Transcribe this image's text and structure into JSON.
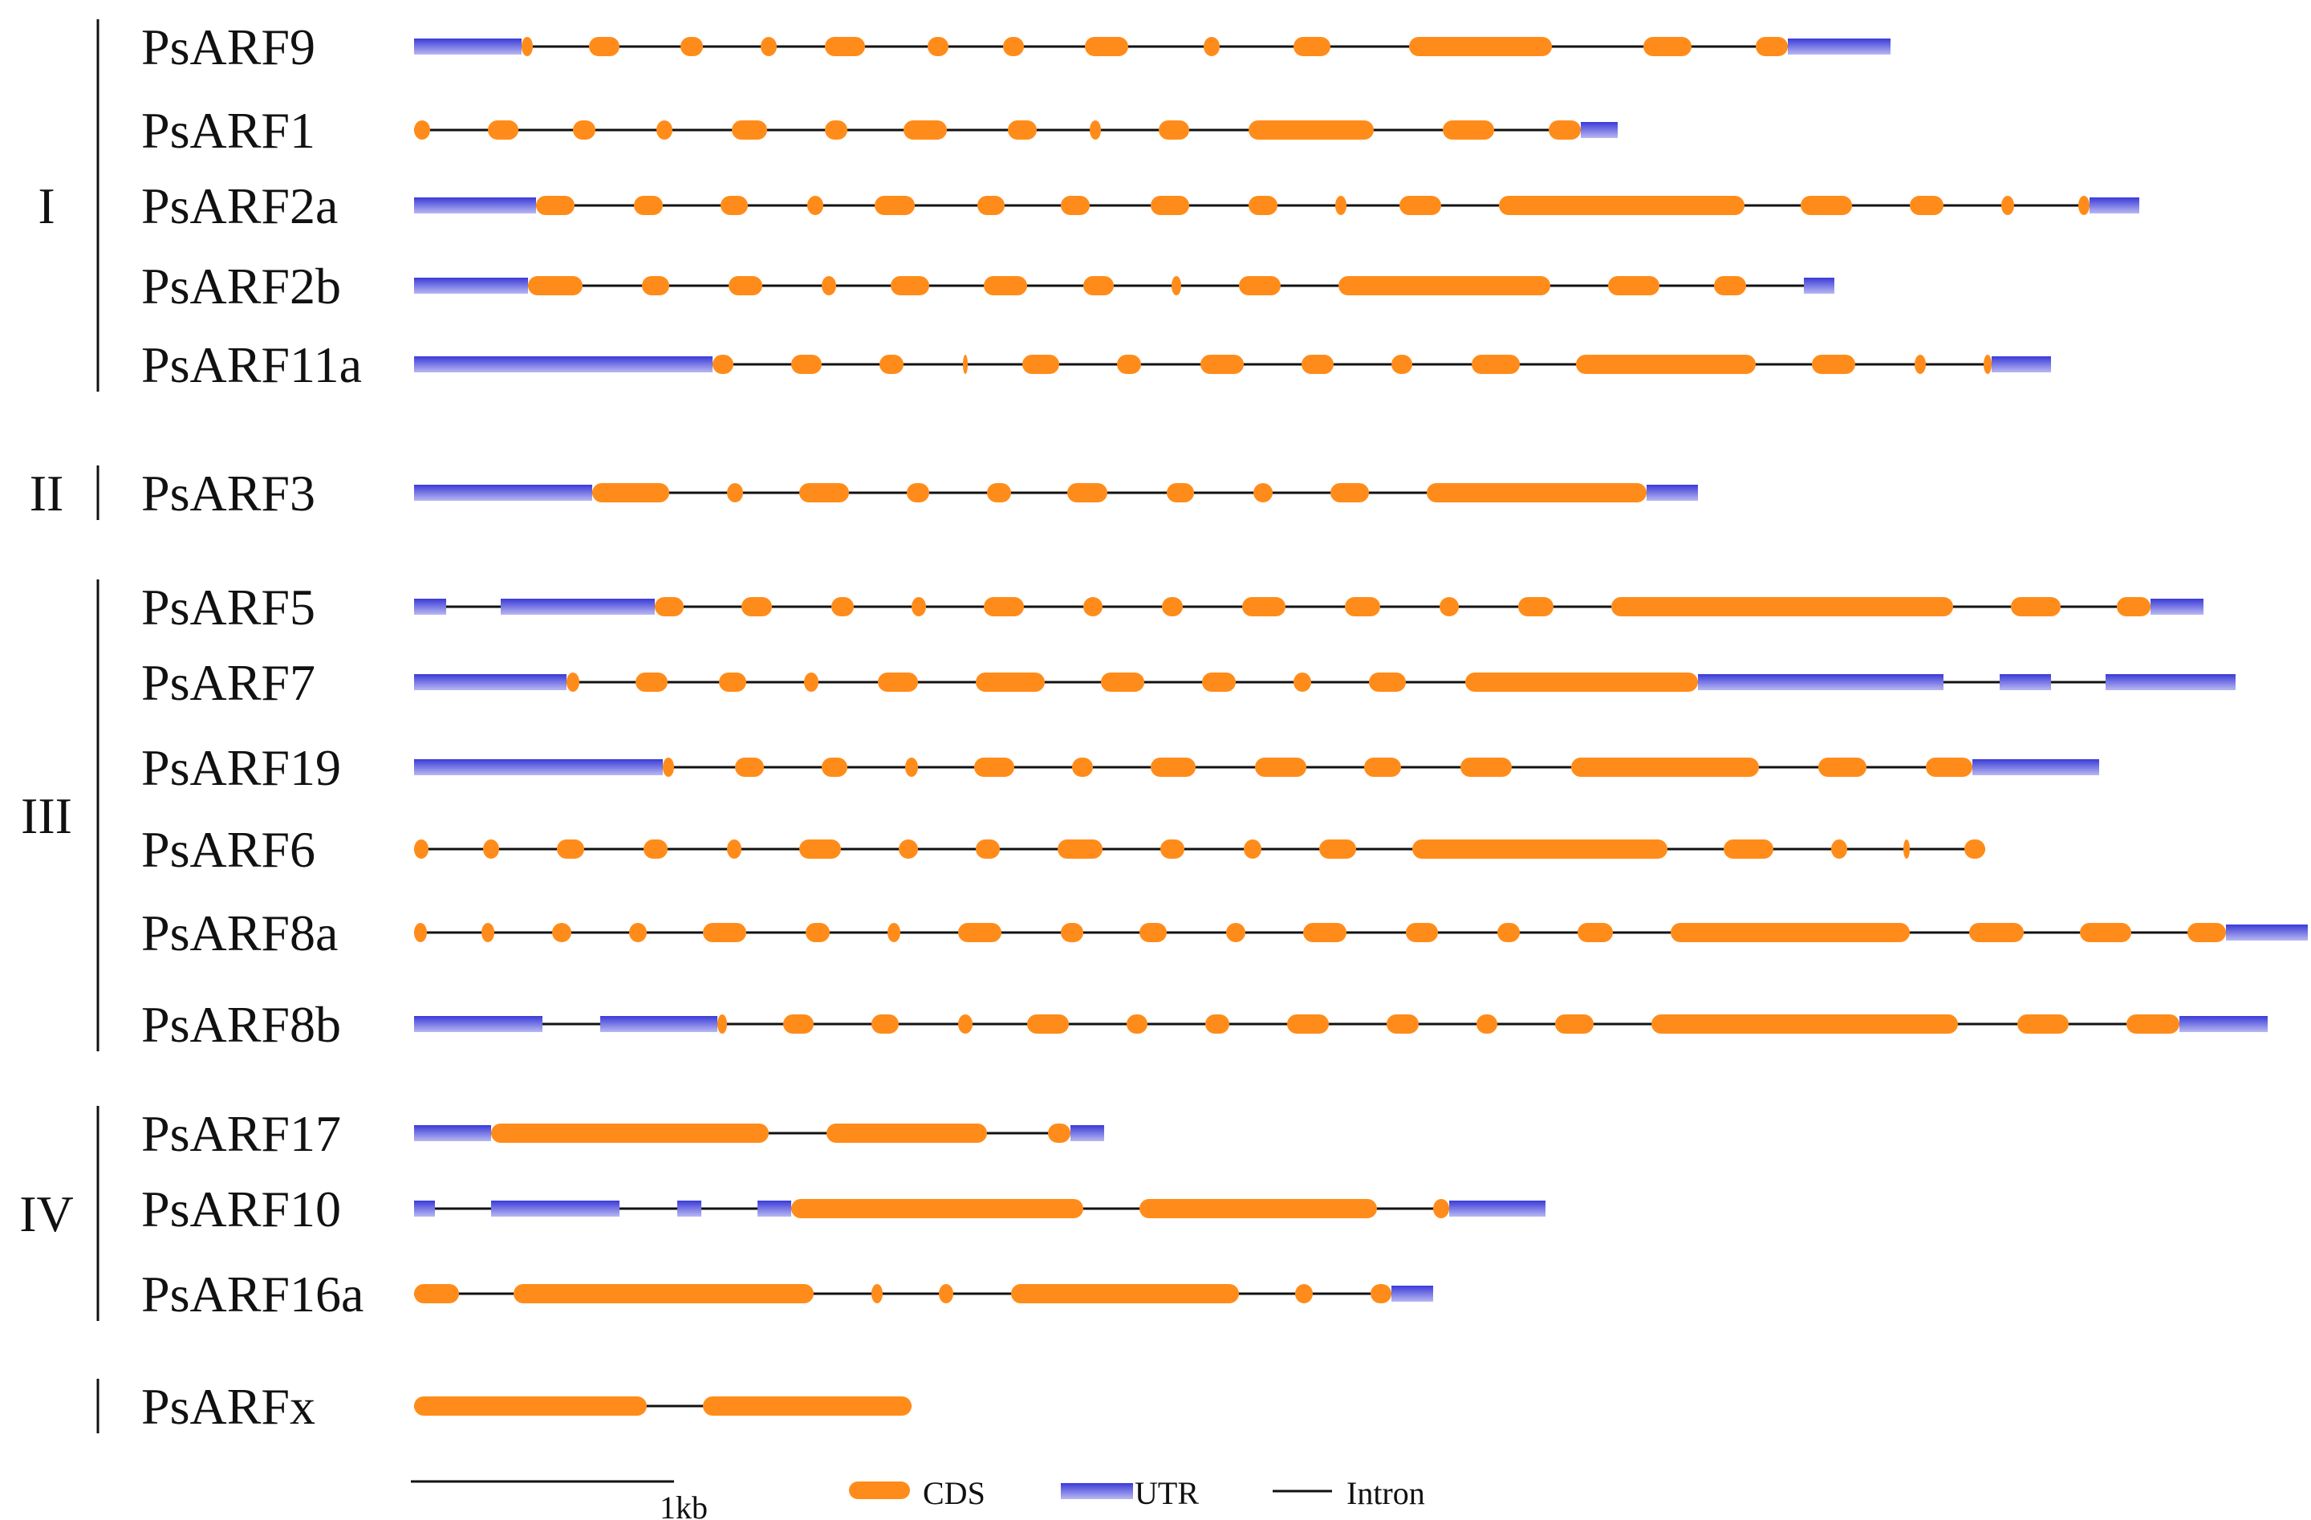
{
  "colors": {
    "cds": "#FF8C1A",
    "utr": "#3A3AD8",
    "utr_light": "#B8B8F2",
    "intron": "#111111"
  },
  "scale_label": "1kb",
  "legend": {
    "cds": "CDS",
    "utr": "UTR",
    "intron": "Intron"
  },
  "groups": [
    {
      "label": "I",
      "first": 0,
      "last": 4
    },
    {
      "label": "II",
      "first": 5,
      "last": 5
    },
    {
      "label": "III",
      "first": 6,
      "last": 11
    },
    {
      "label": "IV",
      "first": 12,
      "last": 14
    },
    {
      "label": "",
      "first": 15,
      "last": 15
    }
  ],
  "genes": [
    {
      "name": "PsARF9",
      "features": [
        [
          "U",
          0,
          134
        ],
        [
          "C",
          134,
          148
        ],
        [
          "C",
          218,
          256
        ],
        [
          "C",
          332,
          360
        ],
        [
          "C",
          432,
          452
        ],
        [
          "C",
          512,
          562
        ],
        [
          "C",
          640,
          666
        ],
        [
          "C",
          734,
          760
        ],
        [
          "C",
          836,
          890
        ],
        [
          "C",
          984,
          1004
        ],
        [
          "C",
          1096,
          1142
        ],
        [
          "C",
          1240,
          1418
        ],
        [
          "C",
          1532,
          1592
        ],
        [
          "C",
          1672,
          1712
        ],
        [
          "U",
          1712,
          1840
        ]
      ]
    },
    {
      "name": "PsARF1",
      "features": [
        [
          "C",
          0,
          20
        ],
        [
          "C",
          92,
          130
        ],
        [
          "C",
          198,
          226
        ],
        [
          "C",
          302,
          322
        ],
        [
          "C",
          396,
          440
        ],
        [
          "C",
          512,
          540
        ],
        [
          "C",
          610,
          664
        ],
        [
          "C",
          740,
          776
        ],
        [
          "C",
          842,
          856
        ],
        [
          "C",
          928,
          966
        ],
        [
          "C",
          1040,
          1196
        ],
        [
          "C",
          1282,
          1346
        ],
        [
          "C",
          1414,
          1454
        ],
        [
          "U",
          1454,
          1500
        ]
      ]
    },
    {
      "name": "PsARF2a",
      "features": [
        [
          "U",
          0,
          152
        ],
        [
          "C",
          152,
          200
        ],
        [
          "C",
          274,
          310
        ],
        [
          "C",
          382,
          416
        ],
        [
          "C",
          490,
          510
        ],
        [
          "C",
          574,
          624
        ],
        [
          "C",
          702,
          736
        ],
        [
          "C",
          806,
          842
        ],
        [
          "C",
          918,
          966
        ],
        [
          "C",
          1040,
          1076
        ],
        [
          "C",
          1148,
          1162
        ],
        [
          "C",
          1228,
          1280
        ],
        [
          "C",
          1352,
          1658
        ],
        [
          "C",
          1728,
          1792
        ],
        [
          "C",
          1864,
          1906
        ],
        [
          "C",
          1978,
          1994
        ],
        [
          "C",
          2074,
          2088
        ],
        [
          "U",
          2088,
          2150
        ]
      ]
    },
    {
      "name": "PsARF2b",
      "features": [
        [
          "U",
          0,
          142
        ],
        [
          "C",
          142,
          210
        ],
        [
          "C",
          284,
          318
        ],
        [
          "C",
          392,
          434
        ],
        [
          "C",
          508,
          526
        ],
        [
          "C",
          594,
          642
        ],
        [
          "C",
          710,
          764
        ],
        [
          "C",
          834,
          872
        ],
        [
          "C",
          944,
          956
        ],
        [
          "C",
          1028,
          1080
        ],
        [
          "C",
          1152,
          1416
        ],
        [
          "C",
          1488,
          1552
        ],
        [
          "C",
          1620,
          1660
        ],
        [
          "U",
          1732,
          1770
        ]
      ]
    },
    {
      "name": "PsARF11a",
      "features": [
        [
          "U",
          0,
          372
        ],
        [
          "C",
          372,
          398
        ],
        [
          "C",
          470,
          508
        ],
        [
          "C",
          580,
          610
        ],
        [
          "C",
          684,
          690
        ],
        [
          "C",
          758,
          804
        ],
        [
          "C",
          876,
          906
        ],
        [
          "C",
          980,
          1034
        ],
        [
          "C",
          1106,
          1146
        ],
        [
          "C",
          1218,
          1244
        ],
        [
          "C",
          1318,
          1378
        ],
        [
          "C",
          1448,
          1672
        ],
        [
          "C",
          1742,
          1796
        ],
        [
          "C",
          1870,
          1884
        ],
        [
          "C",
          1956,
          1966
        ],
        [
          "U",
          1966,
          2040
        ]
      ]
    },
    {
      "name": "PsARF3",
      "features": [
        [
          "U",
          0,
          222
        ],
        [
          "C",
          222,
          318
        ],
        [
          "C",
          390,
          410
        ],
        [
          "C",
          480,
          542
        ],
        [
          "C",
          614,
          642
        ],
        [
          "C",
          714,
          744
        ],
        [
          "C",
          814,
          864
        ],
        [
          "C",
          938,
          972
        ],
        [
          "C",
          1046,
          1070
        ],
        [
          "C",
          1142,
          1190
        ],
        [
          "C",
          1262,
          1536
        ],
        [
          "U",
          1536,
          1600
        ]
      ]
    },
    {
      "name": "PsARF5",
      "features": [
        [
          "U",
          0,
          40
        ],
        [
          "U",
          108,
          300
        ],
        [
          "C",
          300,
          336
        ],
        [
          "C",
          408,
          446
        ],
        [
          "C",
          520,
          548
        ],
        [
          "C",
          620,
          638
        ],
        [
          "C",
          710,
          760
        ],
        [
          "C",
          834,
          858
        ],
        [
          "C",
          932,
          958
        ],
        [
          "C",
          1032,
          1086
        ],
        [
          "C",
          1160,
          1204
        ],
        [
          "C",
          1278,
          1302
        ],
        [
          "C",
          1376,
          1420
        ],
        [
          "C",
          1492,
          1918
        ],
        [
          "C",
          1990,
          2052
        ],
        [
          "C",
          2122,
          2164
        ],
        [
          "U",
          2164,
          2230
        ]
      ]
    },
    {
      "name": "PsARF7",
      "features": [
        [
          "U",
          0,
          190
        ],
        [
          "C",
          190,
          206
        ],
        [
          "C",
          276,
          316
        ],
        [
          "C",
          380,
          414
        ],
        [
          "C",
          486,
          504
        ],
        [
          "C",
          578,
          628
        ],
        [
          "C",
          700,
          786
        ],
        [
          "C",
          856,
          910
        ],
        [
          "C",
          982,
          1024
        ],
        [
          "C",
          1096,
          1118
        ],
        [
          "C",
          1190,
          1236
        ],
        [
          "C",
          1310,
          1600
        ],
        [
          "U",
          1600,
          1906
        ],
        [
          "U",
          1976,
          2040
        ],
        [
          "U",
          2108,
          2270
        ]
      ]
    },
    {
      "name": "PsARF19",
      "features": [
        [
          "U",
          0,
          310
        ],
        [
          "C",
          310,
          324
        ],
        [
          "C",
          400,
          436
        ],
        [
          "C",
          508,
          540
        ],
        [
          "C",
          612,
          628
        ],
        [
          "C",
          698,
          748
        ],
        [
          "C",
          820,
          846
        ],
        [
          "C",
          918,
          974
        ],
        [
          "C",
          1048,
          1112
        ],
        [
          "C",
          1184,
          1230
        ],
        [
          "C",
          1304,
          1368
        ],
        [
          "C",
          1442,
          1676
        ],
        [
          "C",
          1750,
          1810
        ],
        [
          "C",
          1884,
          1942
        ],
        [
          "U",
          1942,
          2100
        ]
      ]
    },
    {
      "name": "PsARF6",
      "features": [
        [
          "C",
          0,
          18
        ],
        [
          "C",
          86,
          106
        ],
        [
          "C",
          178,
          212
        ],
        [
          "C",
          286,
          316
        ],
        [
          "C",
          390,
          408
        ],
        [
          "C",
          480,
          532
        ],
        [
          "C",
          604,
          628
        ],
        [
          "C",
          700,
          730
        ],
        [
          "C",
          802,
          858
        ],
        [
          "C",
          930,
          960
        ],
        [
          "C",
          1034,
          1056
        ],
        [
          "C",
          1128,
          1174
        ],
        [
          "C",
          1244,
          1562
        ],
        [
          "C",
          1632,
          1694
        ],
        [
          "C",
          1766,
          1786
        ],
        [
          "C",
          1856,
          1864
        ],
        [
          "C",
          1932,
          1958
        ]
      ]
    },
    {
      "name": "PsARF8a",
      "features": [
        [
          "C",
          0,
          16
        ],
        [
          "C",
          84,
          100
        ],
        [
          "C",
          172,
          196
        ],
        [
          "C",
          268,
          290
        ],
        [
          "C",
          360,
          414
        ],
        [
          "C",
          488,
          518
        ],
        [
          "C",
          590,
          606
        ],
        [
          "C",
          678,
          732
        ],
        [
          "C",
          806,
          834
        ],
        [
          "C",
          904,
          938
        ],
        [
          "C",
          1012,
          1036
        ],
        [
          "C",
          1108,
          1162
        ],
        [
          "C",
          1236,
          1276
        ],
        [
          "C",
          1350,
          1378
        ],
        [
          "C",
          1450,
          1494
        ],
        [
          "C",
          1566,
          1864
        ],
        [
          "C",
          1938,
          2006
        ],
        [
          "C",
          2076,
          2140
        ],
        [
          "C",
          2210,
          2258
        ],
        [
          "U",
          2258,
          2360
        ]
      ]
    },
    {
      "name": "PsARF8b",
      "features": [
        [
          "U",
          0,
          160
        ],
        [
          "U",
          232,
          378
        ],
        [
          "C",
          378,
          390
        ],
        [
          "C",
          460,
          498
        ],
        [
          "C",
          570,
          604
        ],
        [
          "C",
          678,
          696
        ],
        [
          "C",
          764,
          816
        ],
        [
          "C",
          888,
          914
        ],
        [
          "C",
          986,
          1016
        ],
        [
          "C",
          1088,
          1140
        ],
        [
          "C",
          1212,
          1252
        ],
        [
          "C",
          1324,
          1350
        ],
        [
          "C",
          1422,
          1470
        ],
        [
          "C",
          1542,
          1924
        ],
        [
          "C",
          1998,
          2062
        ],
        [
          "C",
          2134,
          2200
        ],
        [
          "U",
          2200,
          2310
        ]
      ]
    },
    {
      "name": "PsARF17",
      "features": [
        [
          "U",
          0,
          96
        ],
        [
          "C",
          96,
          442
        ],
        [
          "C",
          514,
          714
        ],
        [
          "C",
          790,
          818
        ],
        [
          "U",
          818,
          860
        ]
      ]
    },
    {
      "name": "PsARF10",
      "features": [
        [
          "U",
          0,
          26
        ],
        [
          "U",
          96,
          256
        ],
        [
          "U",
          328,
          358
        ],
        [
          "U",
          428,
          470
        ],
        [
          "C",
          470,
          834
        ],
        [
          "C",
          904,
          1200
        ],
        [
          "C",
          1270,
          1290
        ],
        [
          "U",
          1290,
          1410
        ]
      ]
    },
    {
      "name": "PsARF16a",
      "features": [
        [
          "C",
          0,
          56
        ],
        [
          "C",
          124,
          498
        ],
        [
          "C",
          570,
          584
        ],
        [
          "C",
          654,
          672
        ],
        [
          "C",
          744,
          1028
        ],
        [
          "C",
          1098,
          1120
        ],
        [
          "C",
          1192,
          1218
        ],
        [
          "U",
          1218,
          1270
        ]
      ]
    },
    {
      "name": "PsARFx",
      "features": [
        [
          "C",
          0,
          290
        ],
        [
          "C",
          360,
          620
        ]
      ]
    }
  ]
}
